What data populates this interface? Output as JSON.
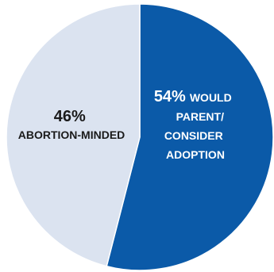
{
  "chart_data": {
    "type": "pie",
    "slices": [
      {
        "name": "WOULD PARENT/ CONSIDER ADOPTION",
        "value": 54,
        "label_pct": "54%",
        "label_lines": [
          "WOULD",
          "PARENT/",
          "CONSIDER",
          "ADOPTION"
        ],
        "color": "#0b5aa8",
        "text_color": "#ffffff"
      },
      {
        "name": "ABORTION-MINDED",
        "value": 46,
        "label_pct": "46%",
        "label_lines": [
          "ABORTION-MINDED"
        ],
        "color": "#dbe3f0",
        "text_color": "#1a1a1a"
      }
    ],
    "start_angle_deg": 0,
    "direction": "clockwise"
  }
}
